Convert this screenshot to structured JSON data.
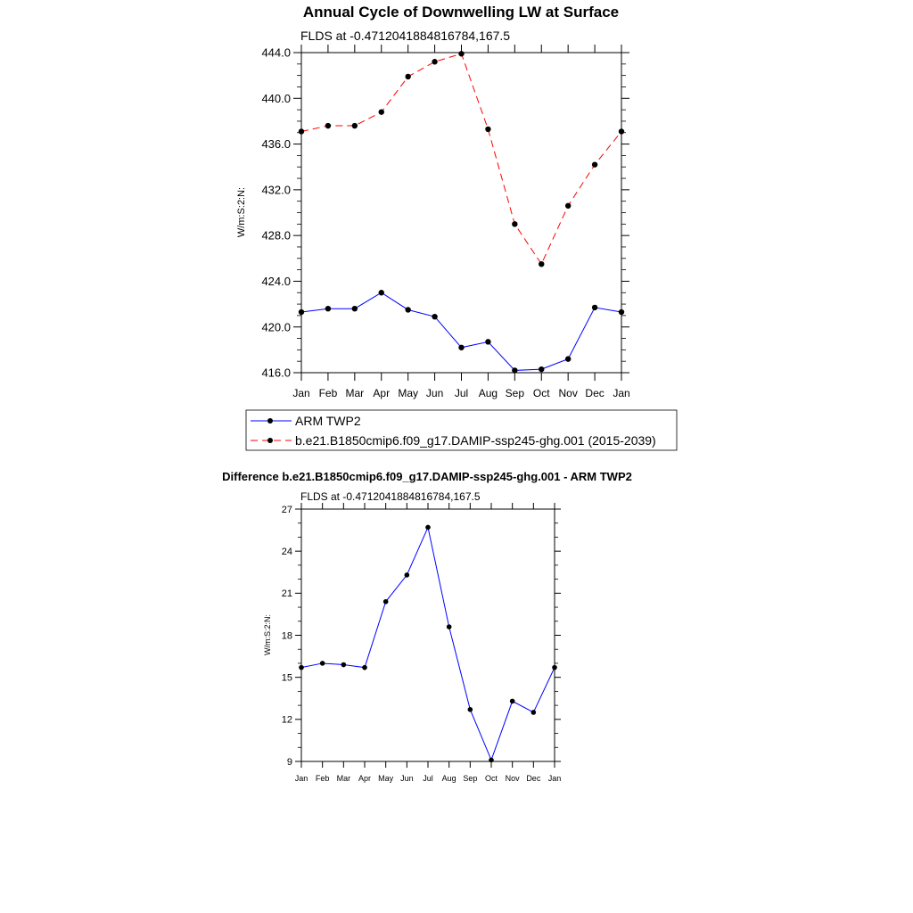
{
  "chart_data": [
    {
      "type": "line",
      "title": "Annual Cycle of Downwelling LW at Surface",
      "subtitle": "FLDS at -0.4712041884816784,167.5",
      "ylabel": "W/m:S:2:N:",
      "ylim": [
        416.0,
        444.0
      ],
      "yticks": [
        "416.0",
        "420.0",
        "424.0",
        "428.0",
        "432.0",
        "436.0",
        "440.0",
        "444.0"
      ],
      "categories": [
        "Jan",
        "Feb",
        "Mar",
        "Apr",
        "May",
        "Jun",
        "Jul",
        "Aug",
        "Sep",
        "Oct",
        "Nov",
        "Dec",
        "Jan"
      ],
      "series": [
        {
          "name": "ARM TWP2",
          "color": "#0000ff",
          "dash": "solid",
          "values": [
            421.3,
            421.6,
            421.6,
            423.0,
            421.5,
            420.9,
            418.2,
            418.7,
            416.2,
            416.3,
            417.2,
            421.7,
            421.3
          ]
        },
        {
          "name": "b.e21.B1850cmip6.f09_g17.DAMIP-ssp245-ghg.001 (2015-2039)",
          "color": "#ff0000",
          "dash": "dashed",
          "values": [
            437.1,
            437.6,
            437.6,
            438.8,
            441.9,
            443.2,
            443.9,
            437.3,
            429.0,
            425.5,
            430.6,
            434.2,
            437.1
          ]
        }
      ],
      "legend": "below"
    },
    {
      "type": "line",
      "title": "Difference b.e21.B1850cmip6.f09_g17.DAMIP-ssp245-ghg.001 - ARM TWP2",
      "subtitle": "FLDS at -0.4712041884816784,167.5",
      "ylabel": "W/m:S:2:N:",
      "ylim": [
        9,
        27
      ],
      "yticks": [
        "9",
        "12",
        "15",
        "18",
        "21",
        "24",
        "27"
      ],
      "categories": [
        "Jan",
        "Feb",
        "Mar",
        "Apr",
        "May",
        "Jun",
        "Jul",
        "Aug",
        "Sep",
        "Oct",
        "Nov",
        "Dec",
        "Jan"
      ],
      "series": [
        {
          "color": "#0000ff",
          "dash": "solid",
          "values": [
            15.7,
            16.0,
            15.9,
            15.7,
            20.4,
            22.3,
            25.7,
            18.6,
            12.7,
            9.1,
            13.3,
            12.5,
            15.7
          ]
        }
      ]
    }
  ]
}
